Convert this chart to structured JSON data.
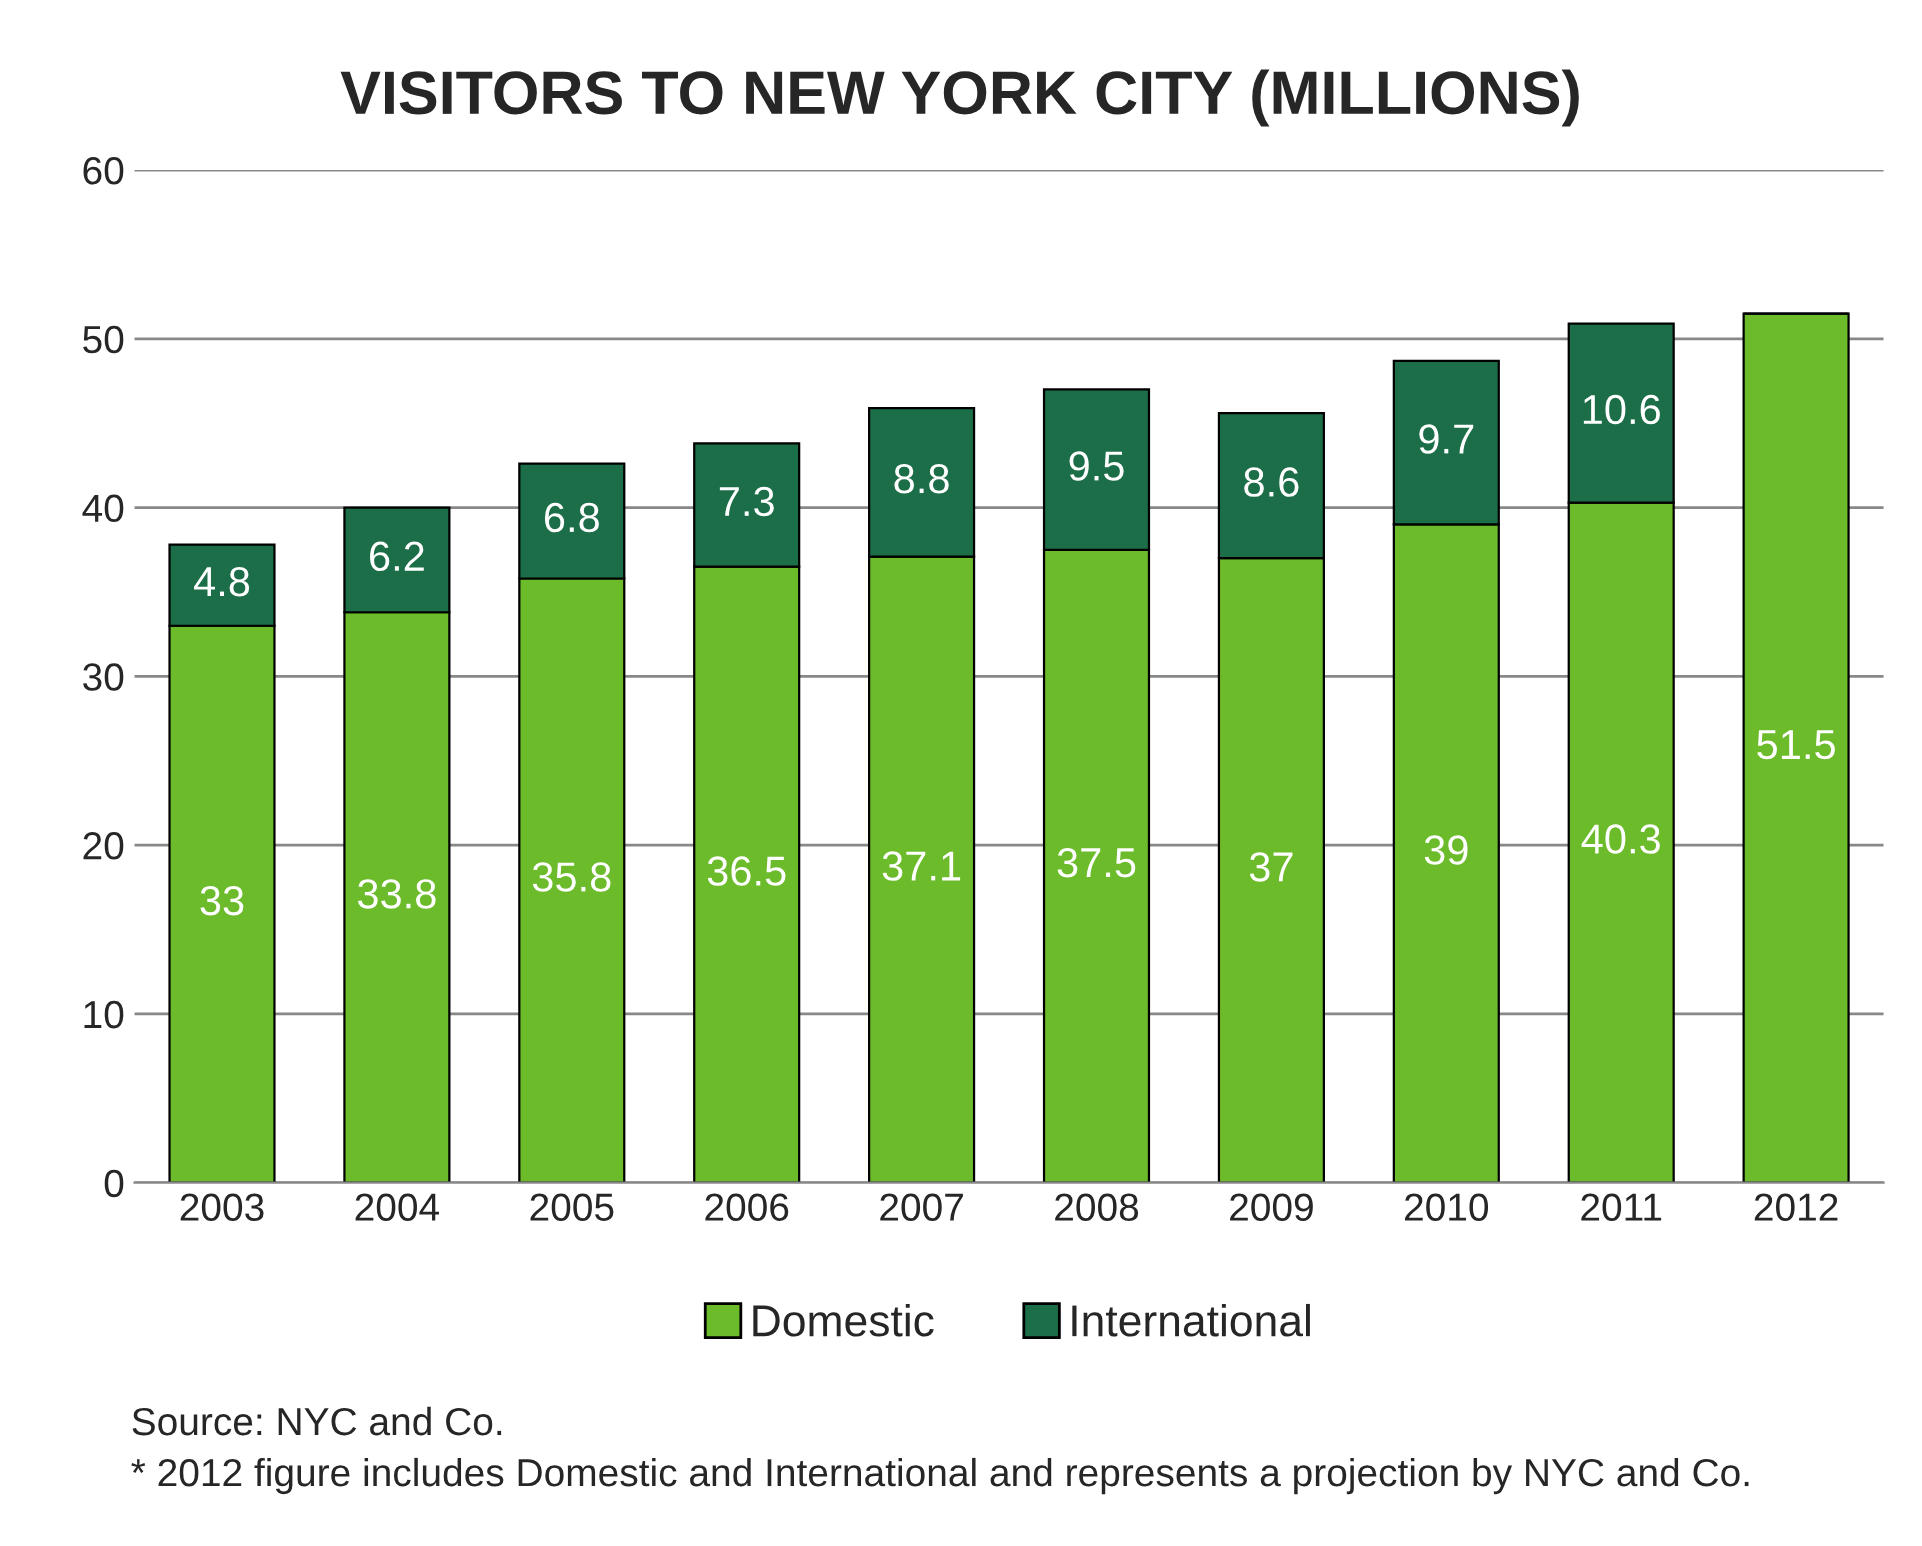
{
  "chart_data": {
    "type": "bar",
    "title": "VISITORS TO NEW YORK CITY (MILLIONS)",
    "categories": [
      "2003",
      "2004",
      "2005",
      "2006",
      "2007",
      "2008",
      "2009",
      "2010",
      "2011",
      "2012"
    ],
    "series": [
      {
        "name": "Domestic",
        "color": "#6bbb2b",
        "values": [
          33,
          33.8,
          35.8,
          36.5,
          37.1,
          37.5,
          37,
          39,
          40.3,
          51.5
        ]
      },
      {
        "name": "International",
        "color": "#1b6e47",
        "values": [
          4.8,
          6.2,
          6.8,
          7.3,
          8.8,
          9.5,
          8.6,
          9.7,
          10.6,
          null
        ]
      }
    ],
    "stacked": true,
    "data_labels": true,
    "ylim": [
      0,
      60
    ],
    "yticks": [
      0,
      10,
      20,
      30,
      40,
      50,
      60
    ],
    "grid": "y",
    "legend": "bottom",
    "annotations": [
      "Source: NYC and Co.",
      "* 2012 figure includes Domestic and International and represents a projection by NYC and Co."
    ]
  }
}
